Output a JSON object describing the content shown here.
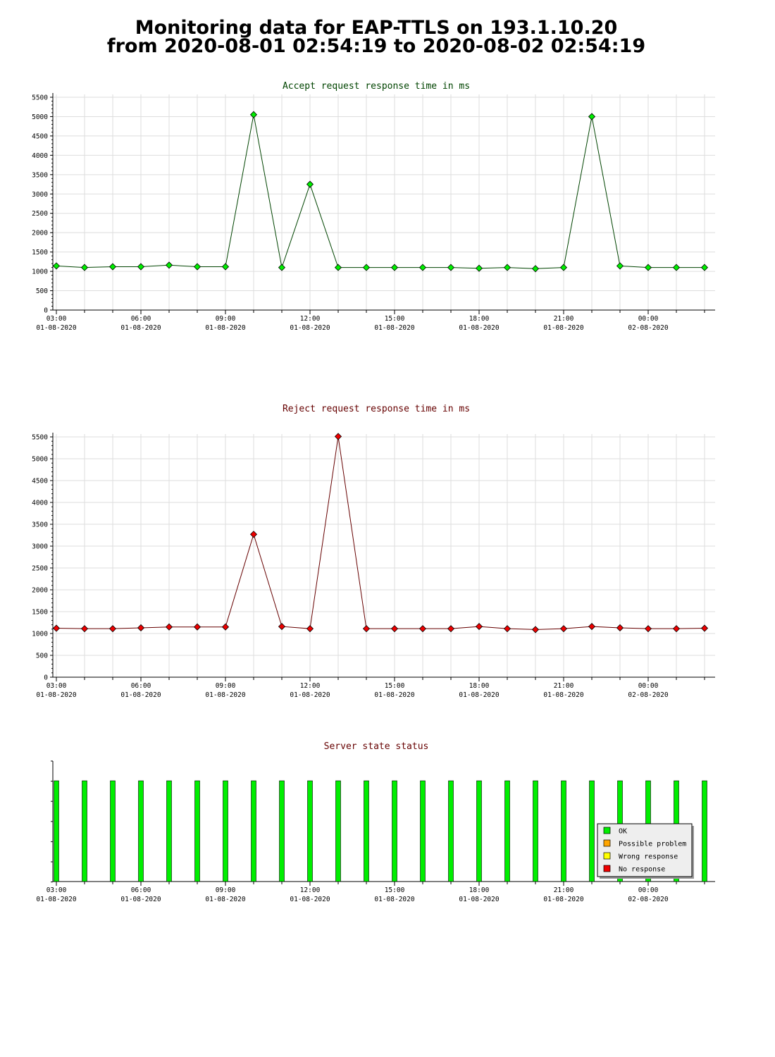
{
  "page": {
    "title_line1": "Monitoring data for EAP-TTLS on 193.1.10.20",
    "title_line2": "from 2020-08-01 02:54:19 to 2020-08-02 02:54:19"
  },
  "colors": {
    "grid": "#dddddd",
    "ok": "#00ee00",
    "possible_problem": "#ffa500",
    "wrong_response": "#ffff00",
    "no_response": "#ee0000",
    "accept_line": "#004400",
    "reject_line": "#660000"
  },
  "chart_data": [
    {
      "id": "accept",
      "type": "line",
      "title": "Accept request response time in ms",
      "title_color": "#004400",
      "ylim": [
        0,
        5500
      ],
      "yticks": [
        0,
        500,
        1000,
        1500,
        2000,
        2500,
        3000,
        3500,
        4000,
        4500,
        5000,
        5500
      ],
      "x_range": [
        0,
        23.35
      ],
      "x_tick_labels": [
        {
          "time": "03:00",
          "date": "01-08-2020"
        },
        {
          "time": "06:00",
          "date": "01-08-2020"
        },
        {
          "time": "09:00",
          "date": "01-08-2020"
        },
        {
          "time": "12:00",
          "date": "01-08-2020"
        },
        {
          "time": "15:00",
          "date": "01-08-2020"
        },
        {
          "time": "18:00",
          "date": "01-08-2020"
        },
        {
          "time": "21:00",
          "date": "01-08-2020"
        },
        {
          "time": "00:00",
          "date": "02-08-2020"
        }
      ],
      "grid": true,
      "marker_color": "#00ee00",
      "line_color": "#004400",
      "series": [
        {
          "values": [
            1140,
            1100,
            1120,
            1120,
            1160,
            1120,
            1120,
            5050,
            1100,
            3250,
            1100,
            1100,
            1100,
            1100,
            1100,
            1080,
            1100,
            1070,
            1100,
            5000,
            1140,
            1100,
            1100,
            1100
          ]
        }
      ]
    },
    {
      "id": "reject",
      "type": "line",
      "title": "Reject request response time in ms",
      "title_color": "#660000",
      "ylim": [
        0,
        5500
      ],
      "yticks": [
        0,
        500,
        1000,
        1500,
        2000,
        2500,
        3000,
        3500,
        4000,
        4500,
        5000,
        5500
      ],
      "x_range": [
        0,
        23.35
      ],
      "x_tick_labels": [
        {
          "time": "03:00",
          "date": "01-08-2020"
        },
        {
          "time": "06:00",
          "date": "01-08-2020"
        },
        {
          "time": "09:00",
          "date": "01-08-2020"
        },
        {
          "time": "12:00",
          "date": "01-08-2020"
        },
        {
          "time": "15:00",
          "date": "01-08-2020"
        },
        {
          "time": "18:00",
          "date": "01-08-2020"
        },
        {
          "time": "21:00",
          "date": "01-08-2020"
        },
        {
          "time": "00:00",
          "date": "02-08-2020"
        }
      ],
      "grid": true,
      "marker_color": "#ee0000",
      "line_color": "#660000",
      "series": [
        {
          "values": [
            1120,
            1110,
            1110,
            1130,
            1150,
            1150,
            1150,
            3270,
            1160,
            1110,
            5510,
            1110,
            1110,
            1110,
            1110,
            1160,
            1110,
            1090,
            1110,
            1160,
            1130,
            1110,
            1110,
            1120
          ]
        }
      ]
    },
    {
      "id": "status",
      "type": "bar",
      "title": "Server state status",
      "title_color": "#660000",
      "x_range": [
        0,
        23.35
      ],
      "x_tick_labels": [
        {
          "time": "03:00",
          "date": "01-08-2020"
        },
        {
          "time": "06:00",
          "date": "01-08-2020"
        },
        {
          "time": "09:00",
          "date": "01-08-2020"
        },
        {
          "time": "12:00",
          "date": "01-08-2020"
        },
        {
          "time": "15:00",
          "date": "01-08-2020"
        },
        {
          "time": "18:00",
          "date": "01-08-2020"
        },
        {
          "time": "21:00",
          "date": "01-08-2020"
        },
        {
          "time": "00:00",
          "date": "02-08-2020"
        }
      ],
      "states": [
        "OK",
        "OK",
        "OK",
        "OK",
        "OK",
        "OK",
        "OK",
        "OK",
        "OK",
        "OK",
        "OK",
        "OK",
        "OK",
        "OK",
        "OK",
        "OK",
        "OK",
        "OK",
        "OK",
        "OK",
        "OK",
        "OK",
        "OK",
        "OK"
      ],
      "legend_position": "bottom-right",
      "legend": [
        {
          "label": "OK",
          "color": "#00ee00"
        },
        {
          "label": "Possible problem",
          "color": "#ffa500"
        },
        {
          "label": "Wrong response",
          "color": "#ffff00"
        },
        {
          "label": "No response",
          "color": "#ee0000"
        }
      ]
    }
  ]
}
